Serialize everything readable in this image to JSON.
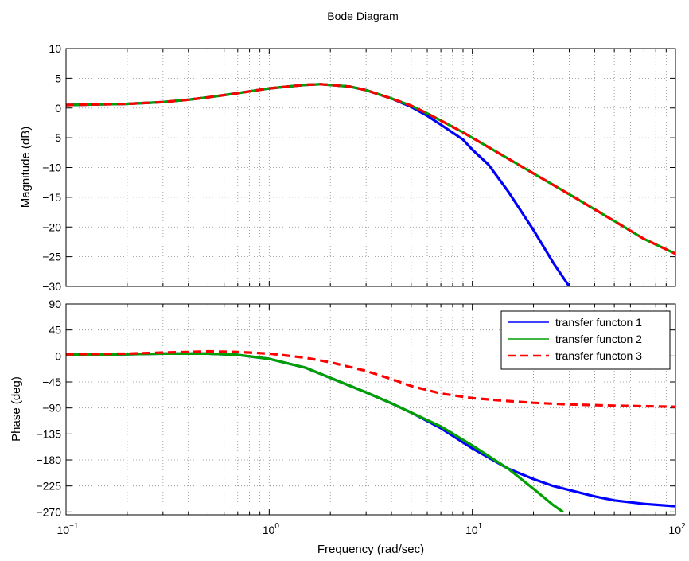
{
  "chart_data": {
    "type": "line",
    "title": "Bode Diagram",
    "xlabel": "Frequency  (rad/sec)",
    "xscale": "log",
    "xlim": [
      0.1,
      100
    ],
    "x_tick_labels": [
      {
        "base": "10",
        "exp": "−1"
      },
      {
        "base": "10",
        "exp": "0"
      },
      {
        "base": "10",
        "exp": "1"
      },
      {
        "base": "10",
        "exp": "2"
      }
    ],
    "grid": true,
    "legend_position": "top-right",
    "colors": {
      "transfer_functon_1": "#0000ff",
      "transfer_functon_2": "#00a000",
      "transfer_functon_3": "#ff0000"
    },
    "magnitude": {
      "ylabel": "Magnitude (dB)",
      "ylim": [
        -30,
        10
      ],
      "yticks": [
        "10",
        "5",
        "0",
        "−5",
        "−10",
        "−15",
        "−20",
        "−25",
        "−30"
      ],
      "series": [
        {
          "name": "transfer functon 1",
          "color": "#0000ff",
          "style": "solid",
          "x": [
            0.1,
            0.2,
            0.3,
            0.4,
            0.5,
            0.7,
            1,
            1.5,
            1.8,
            2.5,
            3,
            4,
            5,
            6,
            7,
            9,
            10,
            12,
            15,
            20,
            25,
            30
          ],
          "y": [
            0.5,
            0.7,
            1.0,
            1.4,
            1.8,
            2.5,
            3.3,
            3.9,
            4.0,
            3.6,
            3.0,
            1.6,
            0.2,
            -1.3,
            -2.8,
            -5.3,
            -7.0,
            -9.5,
            -14.0,
            -20.5,
            -26.0,
            -30.0
          ]
        },
        {
          "name": "transfer functon 2",
          "color": "#00a000",
          "style": "solid",
          "x": [
            0.1,
            0.2,
            0.3,
            0.4,
            0.5,
            0.7,
            1,
            1.5,
            1.8,
            2.5,
            3,
            4,
            5,
            6,
            7,
            9,
            10,
            15,
            20,
            30,
            50,
            70,
            100
          ],
          "y": [
            0.5,
            0.7,
            1.0,
            1.4,
            1.8,
            2.5,
            3.3,
            3.9,
            4.0,
            3.6,
            3.0,
            1.6,
            0.4,
            -0.9,
            -2.1,
            -4.1,
            -5.0,
            -8.5,
            -11.0,
            -14.5,
            -19.0,
            -22.0,
            -24.5
          ]
        },
        {
          "name": "transfer functon 3",
          "color": "#ff0000",
          "style": "dashed",
          "x": [
            0.1,
            0.2,
            0.3,
            0.4,
            0.5,
            0.7,
            1,
            1.5,
            1.8,
            2.5,
            3,
            4,
            5,
            6,
            7,
            9,
            10,
            15,
            20,
            30,
            50,
            70,
            100
          ],
          "y": [
            0.5,
            0.7,
            1.0,
            1.4,
            1.8,
            2.5,
            3.3,
            3.9,
            4.0,
            3.6,
            3.0,
            1.6,
            0.4,
            -0.9,
            -2.1,
            -4.1,
            -5.0,
            -8.5,
            -11.0,
            -14.5,
            -19.0,
            -22.0,
            -24.5
          ]
        }
      ]
    },
    "phase": {
      "ylabel": "Phase (deg)",
      "ylim": [
        -275,
        90
      ],
      "yticks": [
        "90",
        "45",
        "0",
        "−45",
        "−90",
        "−135",
        "−180",
        "−225",
        "−270"
      ],
      "series": [
        {
          "name": "transfer functon 1",
          "color": "#0000ff",
          "style": "solid",
          "x": [
            0.1,
            0.2,
            0.3,
            0.5,
            0.7,
            1,
            1.5,
            2,
            3,
            4,
            5,
            7,
            10,
            15,
            20,
            25,
            30,
            40,
            50,
            70,
            100
          ],
          "y": [
            2,
            3,
            4,
            4,
            2,
            -5,
            -20,
            -38,
            -63,
            -82,
            -98,
            -125,
            -160,
            -195,
            -213,
            -225,
            -232,
            -243,
            -250,
            -256,
            -260
          ]
        },
        {
          "name": "transfer functon 2",
          "color": "#00a000",
          "style": "solid",
          "x": [
            0.1,
            0.2,
            0.3,
            0.5,
            0.7,
            1,
            1.5,
            2,
            3,
            4,
            5,
            7,
            10,
            15,
            20,
            25,
            28
          ],
          "y": [
            2,
            3,
            4,
            4,
            2,
            -5,
            -20,
            -38,
            -63,
            -82,
            -98,
            -122,
            -155,
            -195,
            -230,
            -258,
            -270
          ]
        },
        {
          "name": "transfer functon 3",
          "color": "#ff0000",
          "style": "dashed",
          "x": [
            0.1,
            0.2,
            0.3,
            0.4,
            0.5,
            0.7,
            1,
            1.5,
            2,
            3,
            4,
            5,
            7,
            10,
            15,
            20,
            30,
            50,
            100
          ],
          "y": [
            3,
            4,
            6,
            7,
            8,
            7,
            4,
            -3,
            -11,
            -26,
            -40,
            -52,
            -65,
            -73,
            -78,
            -81,
            -84,
            -86,
            -88
          ]
        }
      ]
    },
    "legend": [
      "transfer functon 1",
      "transfer functon 2",
      "transfer functon 3"
    ]
  }
}
